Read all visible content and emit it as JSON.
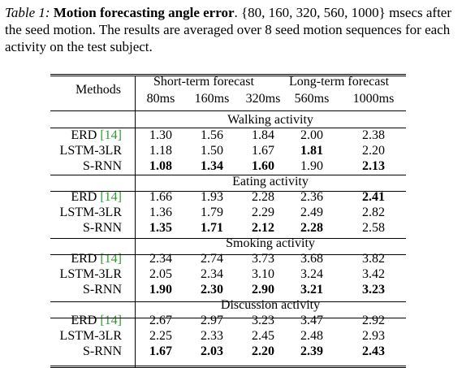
{
  "caption": {
    "label": "Table 1:",
    "title": "Motion forecasting angle error",
    "text_after_title": ". {80, 160, 320, 560, 1000} msecs after the seed motion. The results are averaged over 8 seed motion sequences for each activity on the test subject."
  },
  "table": {
    "methods_header": "Methods",
    "group_headers": {
      "short": "Short-term forecast",
      "long": "Long-term forecast"
    },
    "columns": [
      "80ms",
      "160ms",
      "320ms",
      "560ms",
      "1000ms"
    ],
    "sections": [
      {
        "title": "Walking activity",
        "rows": [
          {
            "method": "ERD",
            "cite": "[14]",
            "values": [
              "1.30",
              "1.56",
              "1.84",
              "2.00",
              "2.38"
            ],
            "bold": [
              false,
              false,
              false,
              false,
              false
            ]
          },
          {
            "method": "LSTM-3LR",
            "cite": "",
            "values": [
              "1.18",
              "1.50",
              "1.67",
              "1.81",
              "2.20"
            ],
            "bold": [
              false,
              false,
              false,
              true,
              false
            ]
          },
          {
            "method": "S-RNN",
            "cite": "",
            "values": [
              "1.08",
              "1.34",
              "1.60",
              "1.90",
              "2.13"
            ],
            "bold": [
              true,
              true,
              true,
              false,
              true
            ]
          }
        ]
      },
      {
        "title": "Eating activity",
        "rows": [
          {
            "method": "ERD",
            "cite": "[14]",
            "values": [
              "1.66",
              "1.93",
              "2.28",
              "2.36",
              "2.41"
            ],
            "bold": [
              false,
              false,
              false,
              false,
              true
            ]
          },
          {
            "method": "LSTM-3LR",
            "cite": "",
            "values": [
              "1.36",
              "1.79",
              "2.29",
              "2.49",
              "2.82"
            ],
            "bold": [
              false,
              false,
              false,
              false,
              false
            ]
          },
          {
            "method": "S-RNN",
            "cite": "",
            "values": [
              "1.35",
              "1.71",
              "2.12",
              "2.28",
              "2.58"
            ],
            "bold": [
              true,
              true,
              true,
              true,
              false
            ]
          }
        ]
      },
      {
        "title": "Smoking activity",
        "rows": [
          {
            "method": "ERD",
            "cite": "[14]",
            "values": [
              "2.34",
              "2.74",
              "3.73",
              "3.68",
              "3.82"
            ],
            "bold": [
              false,
              false,
              false,
              false,
              false
            ]
          },
          {
            "method": "LSTM-3LR",
            "cite": "",
            "values": [
              "2.05",
              "2.34",
              "3.10",
              "3.24",
              "3.42"
            ],
            "bold": [
              false,
              false,
              false,
              false,
              false
            ]
          },
          {
            "method": "S-RNN",
            "cite": "",
            "values": [
              "1.90",
              "2.30",
              "2.90",
              "3.21",
              "3.23"
            ],
            "bold": [
              true,
              true,
              true,
              true,
              true
            ]
          }
        ]
      },
      {
        "title": "Discussion activity",
        "rows": [
          {
            "method": "ERD",
            "cite": "[14]",
            "values": [
              "2.67",
              "2.97",
              "3.23",
              "3.47",
              "2.92"
            ],
            "bold": [
              false,
              false,
              false,
              false,
              false
            ]
          },
          {
            "method": "LSTM-3LR",
            "cite": "",
            "values": [
              "2.25",
              "2.33",
              "2.45",
              "2.48",
              "2.93"
            ],
            "bold": [
              false,
              false,
              false,
              false,
              false
            ]
          },
          {
            "method": "S-RNN",
            "cite": "",
            "values": [
              "1.67",
              "2.03",
              "2.20",
              "2.39",
              "2.43"
            ],
            "bold": [
              true,
              true,
              true,
              true,
              true
            ]
          }
        ]
      }
    ],
    "colors": {
      "citation": "#2e9d2e",
      "rule": "#000000"
    }
  }
}
